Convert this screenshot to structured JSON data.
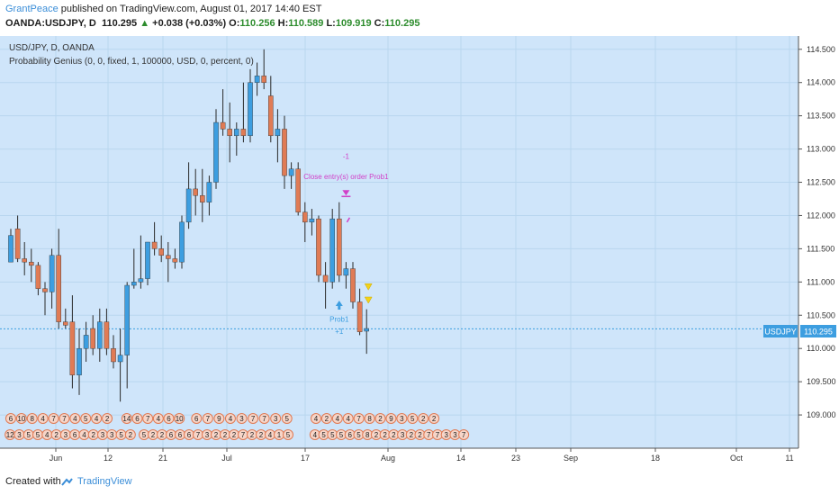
{
  "header": {
    "author": "GrantPeace",
    "published_text": "published on TradingView.com, August 01, 2017 14:40 EST",
    "symbol_line": "OANDA:USDJPY, D",
    "last": "110.295",
    "change": "+0.038 (+0.03%)",
    "o_label": "O:",
    "o_val": "110.256",
    "h_label": "H:",
    "h_val": "110.589",
    "l_label": "L:",
    "l_val": "109.919",
    "c_label": "C:",
    "c_val": "110.295"
  },
  "legend": {
    "symbol": "USD/JPY, D, OANDA",
    "indicator": "Probability Genius (0, 0, fixed, 1, 100000, USD, 0, percent, 0)"
  },
  "colors": {
    "background": "#cfe5fa",
    "bull": "#3d9ee0",
    "bear": "#e07b55",
    "wick": "#2a2a2a",
    "price_tag": "#3d9ee0",
    "annotation_magenta": "#d040c8",
    "annotation_blue": "#3d9ee0",
    "triangle_yellow": "#f2d21a"
  },
  "chart_data": {
    "type": "candlestick",
    "symbol": "USDJPY",
    "last_price": 110.295,
    "ylim": [
      108.5,
      114.7
    ],
    "y_ticks": [
      "114.500",
      "114.000",
      "113.500",
      "113.000",
      "112.500",
      "112.000",
      "111.500",
      "111.000",
      "110.500",
      "110.000",
      "109.500",
      "109.000"
    ],
    "x_tick_labels": [
      "Jun",
      "12",
      "21",
      "Jul",
      "17",
      "Aug",
      "14",
      "23",
      "Sep",
      "18",
      "Oct",
      "11"
    ],
    "candles": [
      {
        "o": 111.3,
        "h": 111.8,
        "l": 111.3,
        "c": 111.7
      },
      {
        "o": 111.8,
        "h": 112.0,
        "l": 111.3,
        "c": 111.35
      },
      {
        "o": 111.35,
        "h": 111.6,
        "l": 111.1,
        "c": 111.3
      },
      {
        "o": 111.3,
        "h": 111.5,
        "l": 111.0,
        "c": 111.25
      },
      {
        "o": 111.25,
        "h": 111.3,
        "l": 110.8,
        "c": 110.9
      },
      {
        "o": 110.9,
        "h": 111.0,
        "l": 110.5,
        "c": 110.85
      },
      {
        "o": 110.85,
        "h": 111.5,
        "l": 110.6,
        "c": 111.4
      },
      {
        "o": 111.4,
        "h": 111.8,
        "l": 110.3,
        "c": 110.4
      },
      {
        "o": 110.4,
        "h": 110.6,
        "l": 110.3,
        "c": 110.35
      },
      {
        "o": 110.4,
        "h": 110.8,
        "l": 109.4,
        "c": 109.6
      },
      {
        "o": 109.6,
        "h": 110.3,
        "l": 109.3,
        "c": 110.0
      },
      {
        "o": 110.0,
        "h": 110.4,
        "l": 109.8,
        "c": 110.2
      },
      {
        "o": 110.3,
        "h": 110.5,
        "l": 109.9,
        "c": 110.0
      },
      {
        "o": 110.0,
        "h": 110.6,
        "l": 109.8,
        "c": 110.4
      },
      {
        "o": 110.4,
        "h": 110.6,
        "l": 109.9,
        "c": 110.0
      },
      {
        "o": 110.0,
        "h": 110.2,
        "l": 109.7,
        "c": 109.8
      },
      {
        "o": 109.8,
        "h": 110.3,
        "l": 109.2,
        "c": 109.9
      },
      {
        "o": 109.9,
        "h": 111.0,
        "l": 109.4,
        "c": 110.95
      },
      {
        "o": 110.95,
        "h": 111.5,
        "l": 110.9,
        "c": 111.0
      },
      {
        "o": 111.0,
        "h": 111.7,
        "l": 110.9,
        "c": 111.05
      },
      {
        "o": 111.05,
        "h": 111.6,
        "l": 110.95,
        "c": 111.6
      },
      {
        "o": 111.6,
        "h": 111.9,
        "l": 111.4,
        "c": 111.5
      },
      {
        "o": 111.5,
        "h": 111.7,
        "l": 111.3,
        "c": 111.4
      },
      {
        "o": 111.4,
        "h": 111.6,
        "l": 111.0,
        "c": 111.35
      },
      {
        "o": 111.35,
        "h": 111.5,
        "l": 111.2,
        "c": 111.3
      },
      {
        "o": 111.3,
        "h": 112.0,
        "l": 111.2,
        "c": 111.9
      },
      {
        "o": 111.9,
        "h": 112.8,
        "l": 111.8,
        "c": 112.4
      },
      {
        "o": 112.4,
        "h": 112.7,
        "l": 112.0,
        "c": 112.3
      },
      {
        "o": 112.3,
        "h": 112.7,
        "l": 111.9,
        "c": 112.2
      },
      {
        "o": 112.2,
        "h": 112.6,
        "l": 112.0,
        "c": 112.5
      },
      {
        "o": 112.5,
        "h": 113.6,
        "l": 112.4,
        "c": 113.4
      },
      {
        "o": 113.4,
        "h": 113.9,
        "l": 113.2,
        "c": 113.3
      },
      {
        "o": 113.3,
        "h": 113.7,
        "l": 112.8,
        "c": 113.2
      },
      {
        "o": 113.2,
        "h": 113.4,
        "l": 112.9,
        "c": 113.3
      },
      {
        "o": 113.3,
        "h": 114.0,
        "l": 113.1,
        "c": 113.2
      },
      {
        "o": 113.2,
        "h": 114.2,
        "l": 113.1,
        "c": 114.0
      },
      {
        "o": 114.0,
        "h": 114.3,
        "l": 113.8,
        "c": 114.1
      },
      {
        "o": 114.1,
        "h": 114.5,
        "l": 113.9,
        "c": 114.0
      },
      {
        "o": 113.8,
        "h": 114.1,
        "l": 113.1,
        "c": 113.2
      },
      {
        "o": 113.2,
        "h": 113.6,
        "l": 112.8,
        "c": 113.3
      },
      {
        "o": 113.3,
        "h": 113.5,
        "l": 112.4,
        "c": 112.6
      },
      {
        "o": 112.6,
        "h": 112.8,
        "l": 112.4,
        "c": 112.7
      },
      {
        "o": 112.7,
        "h": 112.8,
        "l": 112.0,
        "c": 112.05
      },
      {
        "o": 112.05,
        "h": 112.2,
        "l": 111.6,
        "c": 111.9
      },
      {
        "o": 111.9,
        "h": 112.1,
        "l": 111.7,
        "c": 111.95
      },
      {
        "o": 111.95,
        "h": 112.0,
        "l": 111.0,
        "c": 111.1
      },
      {
        "o": 111.1,
        "h": 111.3,
        "l": 110.6,
        "c": 111.0
      },
      {
        "o": 111.0,
        "h": 112.1,
        "l": 110.9,
        "c": 111.95
      },
      {
        "o": 111.95,
        "h": 112.2,
        "l": 111.0,
        "c": 111.1
      },
      {
        "o": 111.1,
        "h": 111.3,
        "l": 110.9,
        "c": 111.2
      },
      {
        "o": 111.2,
        "h": 111.3,
        "l": 110.6,
        "c": 110.7
      },
      {
        "o": 110.7,
        "h": 110.9,
        "l": 110.2,
        "c": 110.25
      },
      {
        "o": 110.26,
        "h": 110.59,
        "l": 109.92,
        "c": 110.3
      }
    ],
    "annotations": [
      {
        "text": "-1",
        "color": "magenta",
        "candle": 49,
        "price": 112.85
      },
      {
        "text": "Close entry(s) order Prob1",
        "color": "magenta",
        "candle": 49,
        "price": 112.55
      },
      {
        "text": "Prob1",
        "color": "blue",
        "candle": 48,
        "price": 110.4
      },
      {
        "text": "+1",
        "color": "blue",
        "candle": 48,
        "price": 110.22
      }
    ],
    "emoji_row1_numbers": [
      "6",
      "10",
      "8",
      "4",
      "7",
      "7",
      "4",
      "5",
      "4",
      "2",
      "14",
      "6",
      "7",
      "4",
      "6",
      "10",
      "6",
      "7",
      "9",
      "4",
      "3",
      "7",
      "7",
      "3",
      "5",
      "4",
      "2",
      "4",
      "4",
      "7",
      "8",
      "2",
      "9",
      "3",
      "5",
      "2",
      "2"
    ],
    "emoji_row2_numbers": [
      "12",
      "3",
      "5",
      "5",
      "4",
      "2",
      "3",
      "6",
      "4",
      "2",
      "3",
      "3",
      "5",
      "2",
      "5",
      "2",
      "2",
      "6",
      "6",
      "6",
      "7",
      "3",
      "2",
      "2",
      "2",
      "7",
      "2",
      "2",
      "4",
      "1",
      "5",
      "4",
      "5",
      "5",
      "5",
      "6",
      "5",
      "8",
      "2",
      "2",
      "2",
      "3",
      "2",
      "2",
      "7",
      "7",
      "3",
      "3",
      "7"
    ]
  },
  "price_tag": {
    "symbol": "USDJPY",
    "value": "110.295"
  },
  "footer": {
    "created_with": "Created with",
    "brand": "TradingView"
  }
}
